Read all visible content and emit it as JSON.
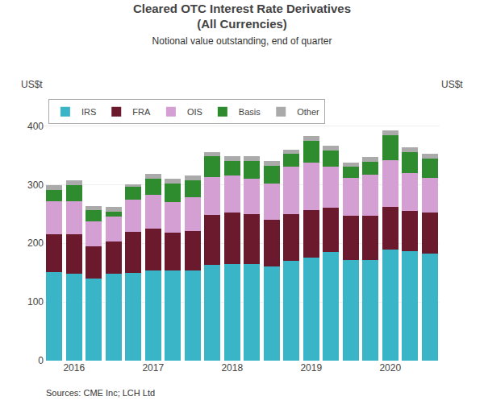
{
  "chart_data": {
    "type": "bar",
    "stacked": true,
    "title": "Cleared OTC Interest Rate Derivatives\n(All Currencies)",
    "subtitle": "Notional value outstanding, end of quarter",
    "y_label": "US$t",
    "y2_label": "US$t",
    "source": "Sources: CME Inc; LCH Ltd",
    "categories": [
      null,
      "2016",
      null,
      null,
      null,
      "2017",
      null,
      null,
      null,
      "2018",
      null,
      null,
      null,
      "2019",
      null,
      null,
      null,
      "2020",
      null,
      null
    ],
    "series": [
      {
        "name": "IRS",
        "color": "#3ab5c8",
        "values": [
          151,
          148,
          140,
          148,
          150,
          153,
          153,
          153,
          163,
          165,
          165,
          160,
          170,
          175,
          185,
          172,
          172,
          190,
          187,
          182
        ]
      },
      {
        "name": "FRA",
        "color": "#6b1a2e",
        "values": [
          65,
          68,
          55,
          55,
          70,
          72,
          65,
          68,
          85,
          88,
          85,
          80,
          80,
          82,
          75,
          75,
          75,
          72,
          68,
          70
        ]
      },
      {
        "name": "OIS",
        "color": "#d4a0d4",
        "values": [
          55,
          55,
          43,
          43,
          55,
          57,
          52,
          58,
          65,
          62,
          60,
          62,
          80,
          80,
          70,
          65,
          70,
          80,
          65,
          60
        ]
      },
      {
        "name": "Basis",
        "color": "#2e8b2e",
        "values": [
          20,
          28,
          18,
          8,
          22,
          28,
          32,
          28,
          35,
          25,
          30,
          30,
          22,
          38,
          28,
          18,
          22,
          42,
          35,
          32
        ]
      },
      {
        "name": "Other",
        "color": "#aaaaaa",
        "values": [
          8,
          8,
          8,
          8,
          3,
          8,
          8,
          8,
          8,
          8,
          8,
          8,
          8,
          8,
          8,
          8,
          8,
          8,
          8,
          8
        ]
      }
    ],
    "ylim": [
      0,
      450
    ],
    "yticks": [
      0,
      100,
      200,
      300,
      400
    ],
    "y2lim": [
      0,
      450
    ],
    "y2ticks": [
      0,
      100,
      200,
      300,
      400
    ],
    "grid": true,
    "legend": "upper left"
  }
}
